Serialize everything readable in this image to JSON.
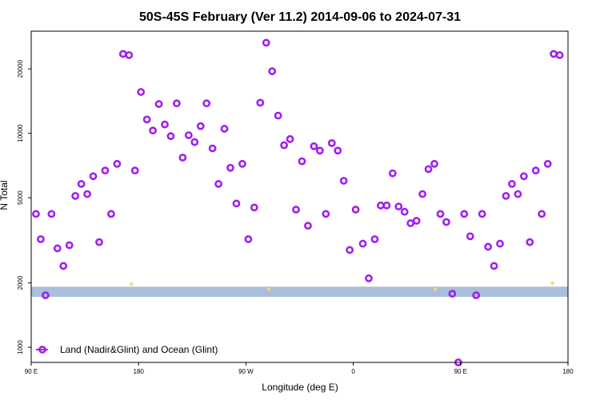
{
  "chart_data": {
    "type": "scatter",
    "title": "50S-45S February (Ver 11.2)   2014-09-06 to 2024-07-31",
    "xlabel": "Longitude (deg E)",
    "ylabel": "N Total",
    "x_ticks": [
      {
        "lon": -270,
        "label": "90 E"
      },
      {
        "lon": -180,
        "label": "180"
      },
      {
        "lon": -90,
        "label": "90 W"
      },
      {
        "lon": 0,
        "label": "0"
      },
      {
        "lon": 90,
        "label": "90 E"
      },
      {
        "lon": 180,
        "label": "180"
      }
    ],
    "y_ticks": [
      {
        "value": 1000,
        "label": "1000"
      },
      {
        "value": 2000,
        "label": "2000"
      },
      {
        "value": 5000,
        "label": "5000"
      },
      {
        "value": 10000,
        "label": "10000"
      },
      {
        "value": 20000,
        "label": "20000"
      }
    ],
    "xlim": [
      -270,
      180
    ],
    "ylim": [
      850,
      30000
    ],
    "y_scale": "log",
    "legend": {
      "position": "bottom-left",
      "entries": [
        "Land (Nadir&Glint) and Ocean (Glint)"
      ]
    },
    "band": {
      "y_range": [
        1720,
        1920
      ],
      "color": "#a9bfdc"
    },
    "colors": {
      "points": "#a020f0",
      "band": "#a9bfdc",
      "small_markers": "#f5d76e"
    },
    "series": [
      {
        "name": "Land (Nadir&Glint) and Ocean (Glint)",
        "points": [
          [
            -266,
            4200
          ],
          [
            -262,
            3200
          ],
          [
            -258,
            1750
          ],
          [
            -253,
            4200
          ],
          [
            -248,
            2900
          ],
          [
            -243,
            2400
          ],
          [
            -238,
            3000
          ],
          [
            -233,
            5100
          ],
          [
            -228,
            5800
          ],
          [
            -223,
            5200
          ],
          [
            -218,
            6300
          ],
          [
            -213,
            3100
          ],
          [
            -208,
            6700
          ],
          [
            -203,
            4200
          ],
          [
            -198,
            7200
          ],
          [
            -193,
            23500
          ],
          [
            -188,
            23200
          ],
          [
            -183,
            6700
          ],
          [
            -178,
            15600
          ],
          [
            -173,
            11600
          ],
          [
            -168,
            10300
          ],
          [
            -163,
            13700
          ],
          [
            -158,
            11000
          ],
          [
            -153,
            9700
          ],
          [
            -148,
            13800
          ],
          [
            -143,
            7700
          ],
          [
            -138,
            9800
          ],
          [
            -133,
            9100
          ],
          [
            -128,
            10800
          ],
          [
            -123,
            13800
          ],
          [
            -118,
            8500
          ],
          [
            -113,
            5800
          ],
          [
            -108,
            10500
          ],
          [
            -103,
            6900
          ],
          [
            -98,
            4700
          ],
          [
            -93,
            7200
          ],
          [
            -88,
            3200
          ],
          [
            -83,
            4500
          ],
          [
            -78,
            13900
          ],
          [
            -73,
            26500
          ],
          [
            -68,
            19500
          ],
          [
            -63,
            12100
          ],
          [
            -58,
            8800
          ],
          [
            -53,
            9400
          ],
          [
            -48,
            4400
          ],
          [
            -43,
            7400
          ],
          [
            -38,
            3700
          ],
          [
            -33,
            8700
          ],
          [
            -28,
            8300
          ],
          [
            -23,
            4200
          ],
          [
            -18,
            9000
          ],
          [
            -13,
            8300
          ],
          [
            -8,
            6000
          ],
          [
            -3,
            2850
          ],
          [
            2,
            4400
          ],
          [
            8,
            3050
          ],
          [
            13,
            2100
          ],
          [
            18,
            3200
          ],
          [
            23,
            4600
          ],
          [
            28,
            4600
          ],
          [
            33,
            6500
          ],
          [
            38,
            4550
          ],
          [
            43,
            4300
          ],
          [
            48,
            3800
          ],
          [
            53,
            3900
          ],
          [
            58,
            5200
          ],
          [
            63,
            6800
          ],
          [
            68,
            7200
          ],
          [
            73,
            4200
          ],
          [
            78,
            3850
          ],
          [
            83,
            1780
          ],
          [
            88,
            850
          ],
          [
            93,
            4200
          ],
          [
            98,
            3300
          ],
          [
            103,
            1750
          ],
          [
            108,
            4200
          ],
          [
            113,
            2950
          ],
          [
            118,
            2400
          ],
          [
            123,
            3050
          ],
          [
            128,
            5100
          ],
          [
            133,
            5800
          ],
          [
            138,
            5200
          ],
          [
            143,
            6300
          ],
          [
            148,
            3100
          ],
          [
            153,
            6700
          ],
          [
            158,
            4200
          ],
          [
            163,
            7200
          ],
          [
            168,
            23500
          ],
          [
            173,
            23200
          ]
        ]
      }
    ],
    "small_markers": [
      [
        -186,
        1980
      ],
      [
        -71,
        1870
      ],
      [
        69,
        1870
      ],
      [
        167,
        1990
      ]
    ]
  }
}
